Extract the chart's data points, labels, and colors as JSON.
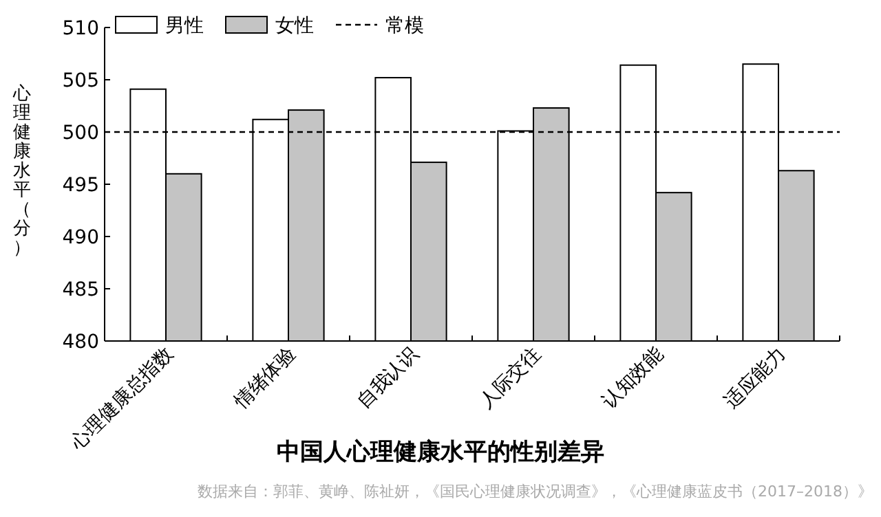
{
  "chart_data": {
    "type": "bar",
    "title": "中国人心理健康水平的性别差异",
    "ylabel": "心理健康水平（分）",
    "annotations": [
      "数据来自：郭菲、黄峥、陈祉妍，《国民心理健康状况调查》，《心理健康蓝皮书（2017–2018）》"
    ],
    "categories": [
      "心理健康总指数",
      "情绪体验",
      "自我认识",
      "人际交往",
      "认知效能",
      "适应能力"
    ],
    "series": [
      {
        "name": "男性",
        "color": "#ffffff",
        "values": [
          504.1,
          501.2,
          505.2,
          500.1,
          506.4,
          506.5
        ]
      },
      {
        "name": "女性",
        "color": "#c4c4c4",
        "values": [
          496.0,
          502.1,
          497.1,
          502.3,
          494.2,
          496.3
        ]
      }
    ],
    "ylim": [
      480,
      510
    ],
    "yticks": [
      480,
      485,
      490,
      495,
      500,
      505,
      510
    ],
    "ref_lines": [
      {
        "axis": "y",
        "value": 500,
        "label": "常模",
        "line_style": "dashed",
        "color": "#000000"
      }
    ],
    "legend": "top left",
    "grid": false
  }
}
